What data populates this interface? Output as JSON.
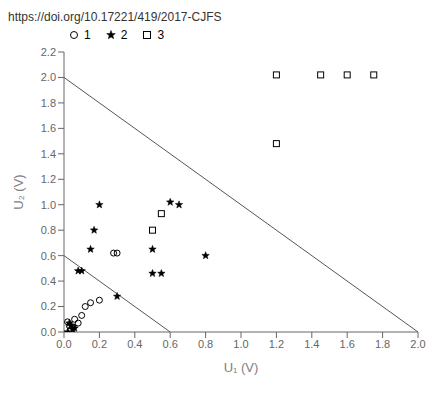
{
  "chart_data": {
    "type": "scatter",
    "title": "https://doi.org/10.17221/419/2017-CJFS",
    "xlabel": "U₁ (V)",
    "ylabel": "U₂ (V)",
    "xlim": [
      0,
      2.0
    ],
    "ylim": [
      0,
      2.2
    ],
    "xticks": [
      {
        "value": 0,
        "label": "0.0"
      },
      0.2,
      0.4,
      0.6,
      0.8,
      {
        "value": 1.0,
        "label": "1.0"
      },
      1.2,
      1.4,
      1.6,
      1.8,
      {
        "value": 2.0,
        "label": "2.0"
      }
    ],
    "yticks": [
      {
        "value": 0,
        "label": "0.0"
      },
      0.2,
      0.4,
      0.6,
      0.8,
      {
        "value": 1.0,
        "label": "1.0"
      },
      1.2,
      1.4,
      1.6,
      1.8,
      {
        "value": 2.0,
        "label": "2.0"
      },
      2.2
    ],
    "grid": false,
    "legend": "upper left",
    "series": [
      {
        "type": "line",
        "color": "#555555",
        "x": [
          0,
          2.0
        ],
        "y": [
          2.0,
          0
        ]
      },
      {
        "type": "line",
        "color": "#555555",
        "x": [
          0,
          0.6
        ],
        "y": [
          0.6,
          0
        ]
      },
      {
        "name": "1",
        "type": "scatter",
        "marker": "circle",
        "color": "black",
        "x": [
          0.02,
          0.03,
          0.04,
          0.05,
          0.06,
          0.08,
          0.1,
          0.12,
          0.15,
          0.2,
          0.28,
          0.3
        ],
        "y": [
          0.08,
          0.05,
          0.02,
          0.04,
          0.1,
          0.07,
          0.13,
          0.2,
          0.23,
          0.25,
          0.62,
          0.62
        ]
      },
      {
        "name": "2",
        "type": "scatter",
        "marker": "star",
        "color": "black",
        "x": [
          0.02,
          0.03,
          0.04,
          0.05,
          0.06,
          0.08,
          0.1,
          0.15,
          0.17,
          0.2,
          0.3,
          0.5,
          0.5,
          0.55,
          0.6,
          0.65,
          0.8
        ],
        "y": [
          0.0,
          0.07,
          0.05,
          0.02,
          0.03,
          0.48,
          0.48,
          0.65,
          0.8,
          1.0,
          0.28,
          0.46,
          0.65,
          0.46,
          1.02,
          1.0,
          0.6
        ]
      },
      {
        "name": "3",
        "type": "scatter",
        "marker": "square",
        "color": "black",
        "x": [
          0.5,
          0.55,
          1.2,
          1.2,
          1.45,
          1.6,
          1.75
        ],
        "y": [
          0.8,
          0.93,
          1.48,
          2.02,
          2.02,
          2.02,
          2.02
        ]
      }
    ]
  }
}
